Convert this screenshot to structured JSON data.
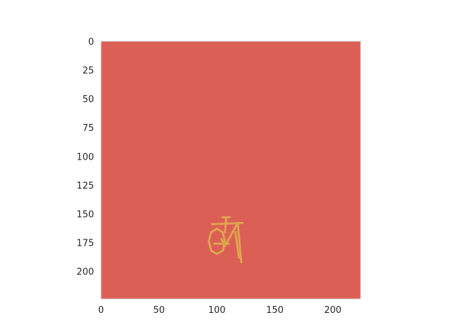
{
  "chart_data": {
    "type": "heatmap",
    "title": "",
    "xlabel": "",
    "ylabel": "",
    "image_size": [
      224,
      224
    ],
    "xlim": [
      0,
      224
    ],
    "ylim": [
      224,
      0
    ],
    "y_inverted": true,
    "grid": false,
    "x_ticks": [
      0,
      50,
      100,
      150,
      200
    ],
    "y_ticks": [
      0,
      25,
      50,
      75,
      100,
      125,
      150,
      175,
      200
    ],
    "colors": {
      "background_fill": "#dc5f55",
      "foreground": "#dea44e",
      "frame": "#d0d0d0",
      "tick_text": "#262626"
    },
    "foreground_object": "bicycle-sketch",
    "foreground_strokes": [
      {
        "name": "seat",
        "points": [
          [
            105,
            153
          ],
          [
            111,
            153
          ]
        ]
      },
      {
        "name": "seat-post",
        "points": [
          [
            108,
            153
          ],
          [
            107,
            166
          ]
        ]
      },
      {
        "name": "top-tube",
        "points": [
          [
            96,
            159
          ],
          [
            122,
            158
          ]
        ]
      },
      {
        "name": "down-tube",
        "points": [
          [
            118,
            158
          ],
          [
            108,
            176
          ]
        ]
      },
      {
        "name": "chainstay",
        "points": [
          [
            98,
            176
          ],
          [
            110,
            176
          ]
        ]
      },
      {
        "name": "fork",
        "points": [
          [
            118,
            158
          ],
          [
            121,
            192
          ]
        ]
      },
      {
        "name": "fork-blade",
        "points": [
          [
            116,
            166
          ],
          [
            119,
            188
          ]
        ]
      },
      {
        "name": "handlebar",
        "points": [
          [
            118,
            158
          ],
          [
            121,
            158
          ]
        ]
      },
      {
        "name": "pedal-crank",
        "points": [
          [
            104,
            172
          ],
          [
            107,
            178
          ]
        ]
      },
      {
        "name": "rear-wheel",
        "points": [
          [
            100,
            163
          ],
          [
            95,
            166
          ],
          [
            93,
            174
          ],
          [
            95,
            182
          ],
          [
            100,
            185
          ],
          [
            105,
            182
          ],
          [
            107,
            174
          ],
          [
            105,
            166
          ],
          [
            100,
            163
          ]
        ]
      }
    ]
  }
}
